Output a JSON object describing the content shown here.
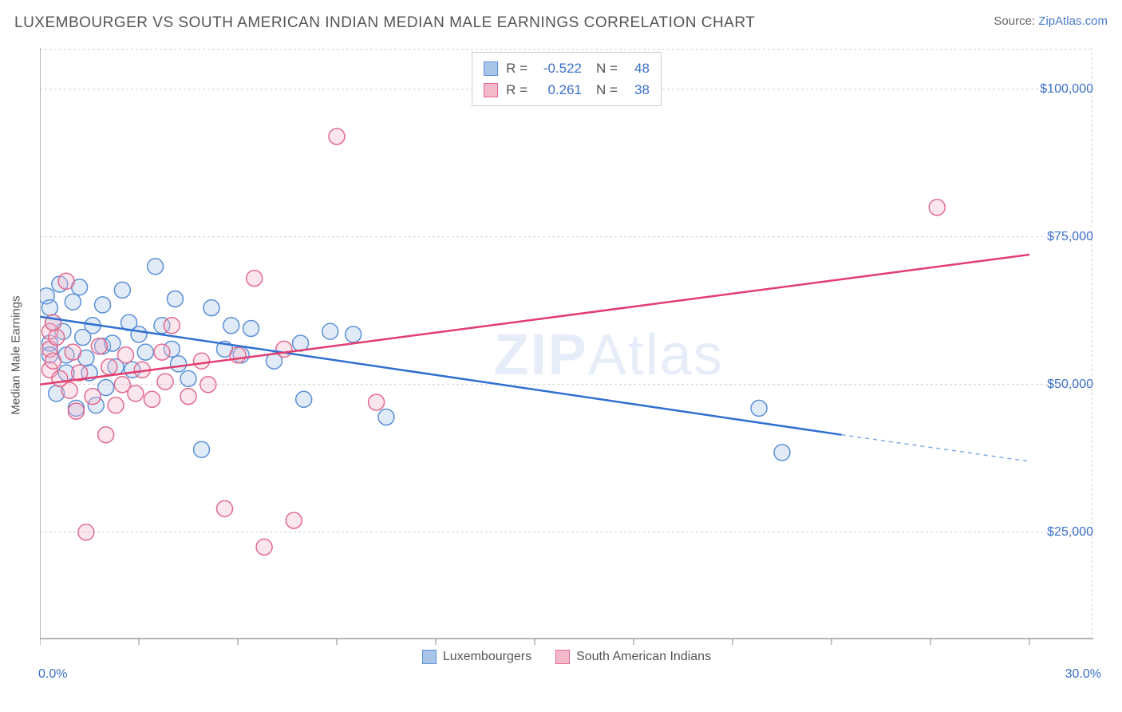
{
  "title": "LUXEMBOURGER VS SOUTH AMERICAN INDIAN MEDIAN MALE EARNINGS CORRELATION CHART",
  "source_prefix": "Source: ",
  "source_link": "ZipAtlas.com",
  "y_axis_label": "Median Male Earnings",
  "watermark_bold": "ZIP",
  "watermark_rest": "Atlas",
  "chart": {
    "type": "scatter",
    "background_color": "#ffffff",
    "grid_color": "#d0d0d0",
    "grid_dash": "3,3",
    "axis_color": "#888888",
    "x_min": 0.0,
    "x_max": 30.0,
    "y_min": 7000,
    "y_max": 107000,
    "y_ticks": [
      25000,
      50000,
      75000,
      100000
    ],
    "y_tick_labels": [
      "$25,000",
      "$50,000",
      "$75,000",
      "$100,000"
    ],
    "x_tick_min_label": "0.0%",
    "x_tick_max_label": "30.0%",
    "x_minor_ticks": [
      0,
      3,
      6,
      9,
      12,
      15,
      18,
      21,
      24,
      27,
      30
    ],
    "marker_radius": 10,
    "marker_stroke_width": 1.5,
    "marker_fill_opacity": 0.35,
    "series": [
      {
        "name": "Luxembourgers",
        "color_stroke": "#5b8fd6",
        "color_fill": "#a8c5e8",
        "R": "-0.522",
        "N": "48",
        "trend": {
          "x1": 0.0,
          "y1": 61500,
          "x2": 24.3,
          "y2": 41500,
          "x2_dash": 30.0,
          "y2_dash": 37000,
          "width": 2.5,
          "color": "#2f6fd0"
        },
        "points": [
          [
            0.2,
            65000
          ],
          [
            0.3,
            63000
          ],
          [
            0.3,
            57000
          ],
          [
            0.3,
            55000
          ],
          [
            0.4,
            60500
          ],
          [
            0.6,
            67000
          ],
          [
            0.7,
            59000
          ],
          [
            0.8,
            55000
          ],
          [
            0.8,
            52000
          ],
          [
            1.0,
            64000
          ],
          [
            1.1,
            46000
          ],
          [
            1.2,
            66500
          ],
          [
            1.3,
            58000
          ],
          [
            1.5,
            52000
          ],
          [
            1.6,
            60000
          ],
          [
            1.7,
            46500
          ],
          [
            1.9,
            56500
          ],
          [
            1.9,
            63500
          ],
          [
            2.2,
            57000
          ],
          [
            2.3,
            53000
          ],
          [
            2.5,
            66000
          ],
          [
            2.7,
            60500
          ],
          [
            2.8,
            52500
          ],
          [
            3.0,
            58500
          ],
          [
            3.2,
            55500
          ],
          [
            3.5,
            70000
          ],
          [
            3.7,
            60000
          ],
          [
            4.0,
            56000
          ],
          [
            4.1,
            64500
          ],
          [
            4.2,
            53500
          ],
          [
            4.5,
            51000
          ],
          [
            4.9,
            39000
          ],
          [
            5.2,
            63000
          ],
          [
            5.6,
            56000
          ],
          [
            5.8,
            60000
          ],
          [
            6.1,
            55000
          ],
          [
            6.4,
            59500
          ],
          [
            7.1,
            54000
          ],
          [
            7.9,
            57000
          ],
          [
            8.0,
            47500
          ],
          [
            8.8,
            59000
          ],
          [
            9.5,
            58500
          ],
          [
            10.5,
            44500
          ],
          [
            21.8,
            46000
          ],
          [
            22.5,
            38500
          ],
          [
            2.0,
            49500
          ],
          [
            1.4,
            54500
          ],
          [
            0.5,
            48500
          ]
        ]
      },
      {
        "name": "South American Indians",
        "color_stroke": "#e26a8f",
        "color_fill": "#f4b8cb",
        "R": "0.261",
        "N": "38",
        "trend": {
          "x1": 0.0,
          "y1": 50000,
          "x2": 30.0,
          "y2": 72000,
          "width": 2.5,
          "color": "#e23d6e"
        },
        "points": [
          [
            0.3,
            59000
          ],
          [
            0.3,
            56000
          ],
          [
            0.3,
            52500
          ],
          [
            0.4,
            54000
          ],
          [
            0.5,
            58000
          ],
          [
            0.6,
            51000
          ],
          [
            0.8,
            67500
          ],
          [
            0.9,
            49000
          ],
          [
            1.0,
            55500
          ],
          [
            1.2,
            52000
          ],
          [
            1.4,
            25000
          ],
          [
            1.6,
            48000
          ],
          [
            1.8,
            56500
          ],
          [
            2.0,
            41500
          ],
          [
            2.1,
            53000
          ],
          [
            2.3,
            46500
          ],
          [
            2.5,
            50000
          ],
          [
            2.6,
            55000
          ],
          [
            2.9,
            48500
          ],
          [
            3.1,
            52500
          ],
          [
            3.4,
            47500
          ],
          [
            3.7,
            55500
          ],
          [
            3.8,
            50500
          ],
          [
            4.0,
            60000
          ],
          [
            4.5,
            48000
          ],
          [
            4.9,
            54000
          ],
          [
            5.1,
            50000
          ],
          [
            5.6,
            29000
          ],
          [
            6.0,
            55000
          ],
          [
            6.5,
            68000
          ],
          [
            6.8,
            22500
          ],
          [
            7.4,
            56000
          ],
          [
            7.7,
            27000
          ],
          [
            9.0,
            92000
          ],
          [
            10.2,
            47000
          ],
          [
            27.2,
            80000
          ],
          [
            1.1,
            45500
          ],
          [
            0.4,
            60500
          ]
        ]
      }
    ]
  },
  "legend_labels": {
    "lux": "Luxembourgers",
    "sai": "South American Indians",
    "R_label": "R =",
    "N_label": "N ="
  }
}
